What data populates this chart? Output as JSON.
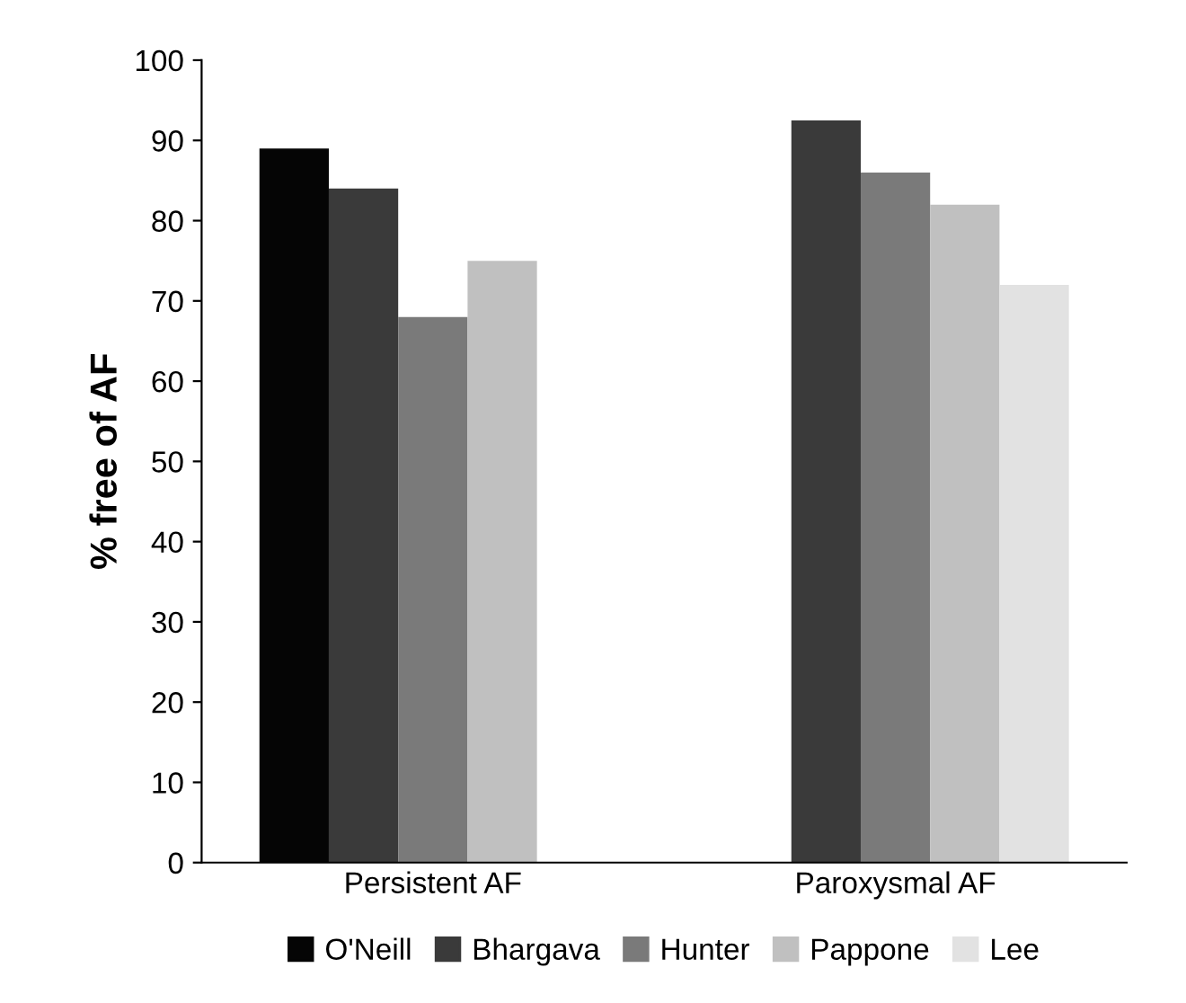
{
  "chart_data": {
    "type": "bar",
    "ylabel": "% free of AF",
    "categories": [
      "Persistent AF",
      "Paroxysmal AF"
    ],
    "series": [
      {
        "name": "O'Neill",
        "color": "#050505",
        "values": [
          89,
          null
        ]
      },
      {
        "name": "Bhargava",
        "color": "#3a3a3a",
        "values": [
          84,
          92.5
        ]
      },
      {
        "name": "Hunter",
        "color": "#7a7a7a",
        "values": [
          68,
          86
        ]
      },
      {
        "name": "Pappone",
        "color": "#c0c0c0",
        "values": [
          75,
          82
        ]
      },
      {
        "name": "Lee",
        "color": "#e2e2e2",
        "values": [
          null,
          72
        ]
      }
    ],
    "ylim": [
      0,
      100
    ],
    "yticks": [
      0,
      10,
      20,
      30,
      40,
      50,
      60,
      70,
      80,
      90,
      100
    ],
    "grid": false,
    "legend": "bottom"
  }
}
